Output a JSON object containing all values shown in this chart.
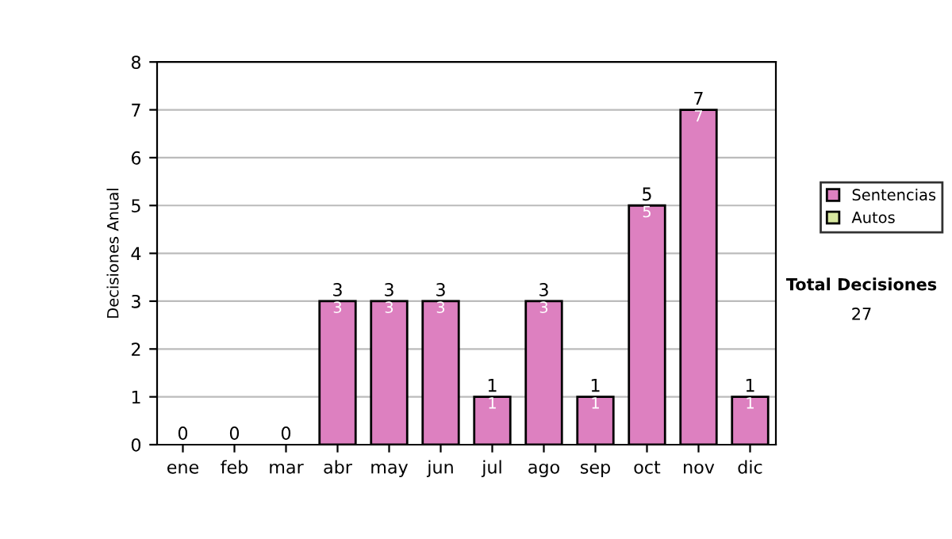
{
  "chart_data": {
    "type": "bar",
    "ylabel": "Decisiones Anual",
    "categories": [
      "ene",
      "feb",
      "mar",
      "abr",
      "may",
      "jun",
      "jul",
      "ago",
      "sep",
      "oct",
      "nov",
      "dic"
    ],
    "stacked": true,
    "series": [
      {
        "name": "Sentencias",
        "color": "#dd80c0",
        "values": [
          0,
          0,
          0,
          3,
          3,
          3,
          1,
          3,
          1,
          5,
          7,
          1
        ],
        "value_labels": [
          null,
          null,
          null,
          "3",
          "3",
          "3",
          "1",
          "3",
          "1",
          "5",
          "7",
          "1"
        ]
      },
      {
        "name": "Autos",
        "color": "#d8e8a0",
        "values": [
          0,
          0,
          0,
          0,
          0,
          0,
          0,
          0,
          0,
          0,
          0,
          0
        ]
      }
    ],
    "totals": [
      "0",
      "0",
      "0",
      "3",
      "3",
      "3",
      "1",
      "3",
      "1",
      "5",
      "7",
      "1"
    ],
    "ylim": [
      0,
      8
    ],
    "yticks": [
      0,
      1,
      2,
      3,
      4,
      5,
      6,
      7,
      8
    ],
    "grid": "y",
    "legend": "right",
    "annotations": [
      "Total Decisiones",
      "27"
    ]
  }
}
